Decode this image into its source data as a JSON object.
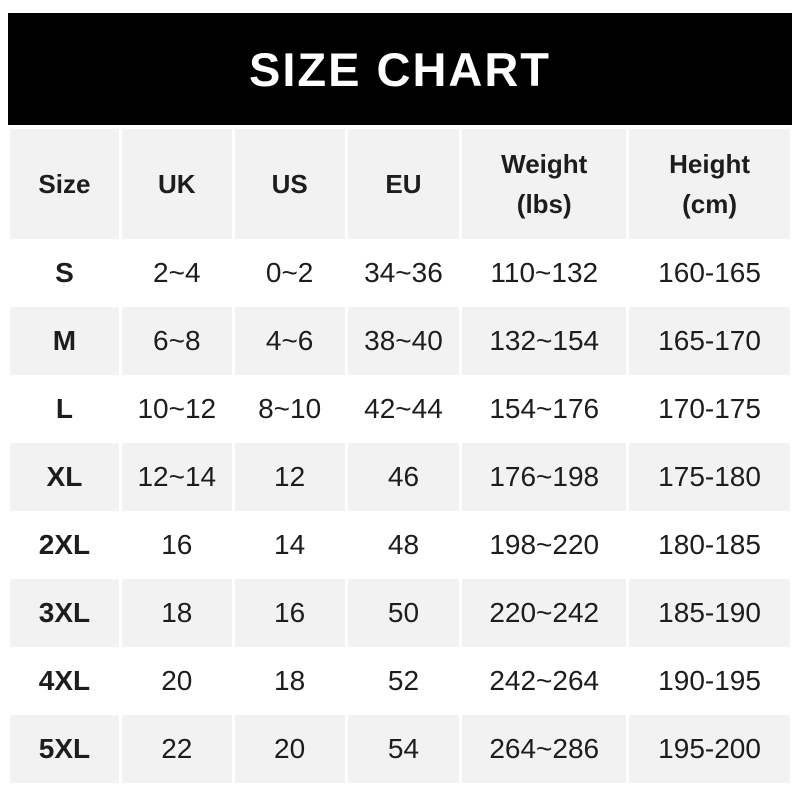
{
  "banner": {
    "title": "SIZE CHART"
  },
  "colors": {
    "banner_bg": "#000000",
    "banner_text": "#ffffff",
    "stripe": "#f2f2f2",
    "row_bg": "#ffffff",
    "text": "#1d1d1f"
  },
  "chart_data": {
    "type": "table",
    "title": "SIZE CHART",
    "columns": [
      {
        "label": "Size"
      },
      {
        "label": "UK"
      },
      {
        "label": "US"
      },
      {
        "label": "EU"
      },
      {
        "label": "Weight",
        "sub": "(lbs)"
      },
      {
        "label": "Height",
        "sub": "(cm)"
      }
    ],
    "rows": [
      [
        "S",
        "2~4",
        "0~2",
        "34~36",
        "110~132",
        "160-165"
      ],
      [
        "M",
        "6~8",
        "4~6",
        "38~40",
        "132~154",
        "165-170"
      ],
      [
        "L",
        "10~12",
        "8~10",
        "42~44",
        "154~176",
        "170-175"
      ],
      [
        "XL",
        "12~14",
        "12",
        "46",
        "176~198",
        "175-180"
      ],
      [
        "2XL",
        "16",
        "14",
        "48",
        "198~220",
        "180-185"
      ],
      [
        "3XL",
        "18",
        "16",
        "50",
        "220~242",
        "185-190"
      ],
      [
        "4XL",
        "20",
        "18",
        "52",
        "242~264",
        "190-195"
      ],
      [
        "5XL",
        "22",
        "20",
        "54",
        "264~286",
        "195-200"
      ]
    ]
  }
}
